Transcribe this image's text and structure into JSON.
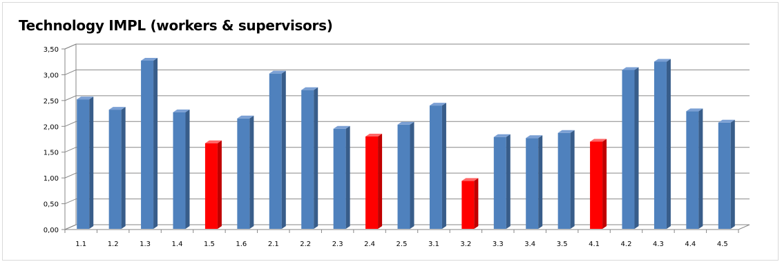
{
  "chart_data": {
    "type": "bar",
    "title": "Technology IMPL (workers & supervisors)",
    "xlabel": "",
    "ylabel": "",
    "ylim": [
      0,
      3.5
    ],
    "yticks": [
      "0,00",
      "0,50",
      "1,00",
      "1,50",
      "2,00",
      "2,50",
      "3,00",
      "3,50"
    ],
    "grid": true,
    "legend": "none",
    "categories": [
      "1.1",
      "1.2",
      "1.3",
      "1.4",
      "1.5",
      "1.6",
      "2.1",
      "2.2",
      "2.3",
      "2.4",
      "2.5",
      "3.1",
      "3.2",
      "3.3",
      "3.4",
      "3.5",
      "4.1",
      "4.2",
      "4.3",
      "4.4",
      "4.5"
    ],
    "values": [
      2.55,
      2.35,
      3.3,
      2.3,
      1.7,
      2.18,
      3.05,
      2.73,
      1.98,
      1.83,
      2.06,
      2.43,
      0.97,
      1.82,
      1.8,
      1.9,
      1.73,
      3.12,
      3.28,
      2.32,
      2.1
    ],
    "highlighted": [
      "1.5",
      "2.4",
      "3.2",
      "4.1"
    ],
    "colors": {
      "bar": "#4f81bd",
      "bar_side": "#385d8a",
      "bar_top": "#7ba0d4",
      "highlight": "#ff0000",
      "highlight_side": "#c00000",
      "highlight_top": "#ff6666",
      "grid": "#868686"
    }
  }
}
